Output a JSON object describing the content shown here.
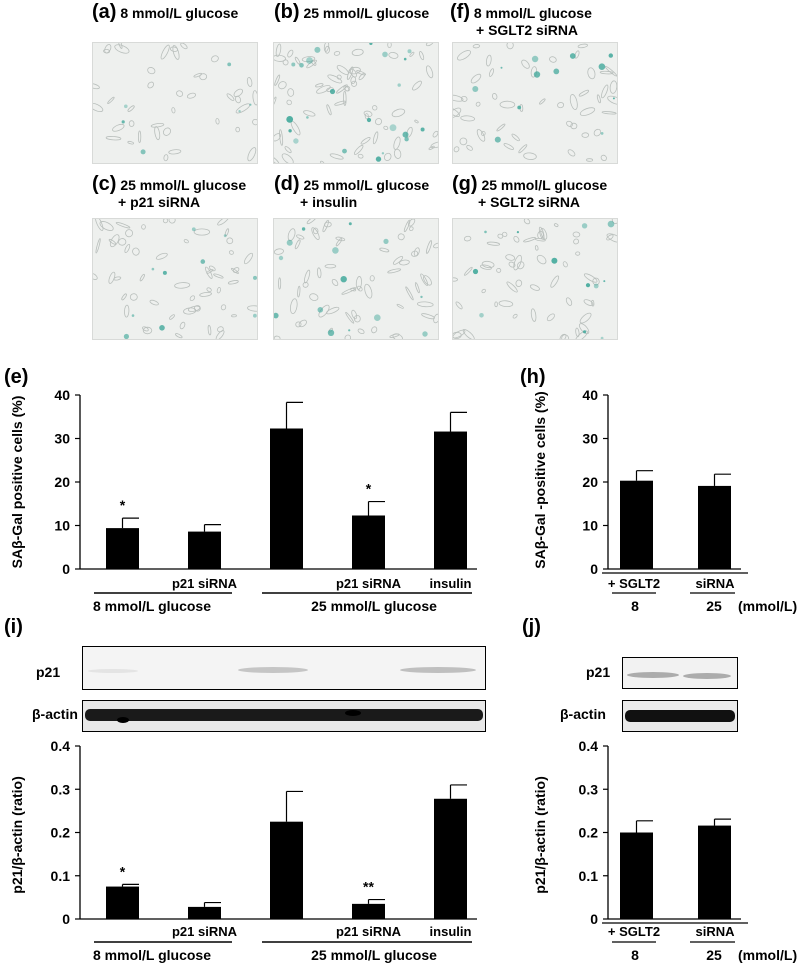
{
  "colors": {
    "bar": "#000000",
    "stain": "#3fa79a",
    "photo_bg": "#eef0ee"
  },
  "micrographs": [
    {
      "letter": "(a)",
      "line1": "8 mmol/L glucose",
      "line2": ""
    },
    {
      "letter": "(b)",
      "line1": "25 mmol/L glucose",
      "line2": ""
    },
    {
      "letter": "(f)",
      "line1": "8 mmol/L glucose",
      "line2": "+ SGLT2 siRNA"
    },
    {
      "letter": "(c)",
      "line1": "25 mmol/L glucose",
      "line2": "+ p21 siRNA"
    },
    {
      "letter": "(d)",
      "line1": "25 mmol/L glucose",
      "line2": "+ insulin"
    },
    {
      "letter": "(g)",
      "line1": "25 mmol/L glucose",
      "line2": "+ SGLT2 siRNA"
    }
  ],
  "blots": {
    "i": {
      "row1": "p21",
      "row2": "β-actin"
    },
    "j": {
      "row1": "p21",
      "row2": "β-actin"
    }
  },
  "chart_data": [
    {
      "panel": "(e)",
      "type": "bar",
      "ylabel": "SAβ-Gal positive cells (%)",
      "ylim": [
        0,
        40
      ],
      "yticks": [
        "0",
        "10",
        "20",
        "30",
        "40"
      ],
      "values": [
        9.4,
        8.6,
        32.3,
        12.3,
        31.6
      ],
      "errors": [
        2.3,
        1.6,
        6.0,
        3.2,
        4.4
      ],
      "significance": [
        "*",
        "",
        "",
        "*",
        ""
      ],
      "treatment_labels": [
        "",
        "p21  siRNA",
        "",
        "p21  siRNA",
        "insulin"
      ],
      "groups": [
        "8 mmol/L glucose",
        "25 mmol/L glucose"
      ]
    },
    {
      "panel": "(h)",
      "type": "bar",
      "ylabel": "SAβ-Gal -positive cells (%)",
      "ylim": [
        0,
        40
      ],
      "yticks": [
        "0",
        "10",
        "20",
        "30",
        "40"
      ],
      "values": [
        20.3,
        19.1
      ],
      "errors": [
        2.3,
        2.7
      ],
      "treatment_labels": [
        "+ SGLT2",
        "siRNA"
      ],
      "categories": [
        "8",
        "25"
      ],
      "unit": "(mmol/L)"
    },
    {
      "panel": "(i)",
      "type": "bar",
      "ylabel": "p21/β-actin (ratio)",
      "ylim": [
        0,
        0.4
      ],
      "yticks": [
        "0",
        "0.1",
        "0.2",
        "0.3",
        "0.4"
      ],
      "values": [
        0.075,
        0.028,
        0.225,
        0.035,
        0.278
      ],
      "errors": [
        0.005,
        0.01,
        0.07,
        0.01,
        0.032
      ],
      "significance": [
        "*",
        "",
        "",
        "**",
        ""
      ],
      "treatment_labels": [
        "",
        "p21  siRNA",
        "",
        "p21  siRNA",
        "insulin"
      ],
      "groups": [
        "8 mmol/L glucose",
        "25 mmol/L glucose"
      ]
    },
    {
      "panel": "(j)",
      "type": "bar",
      "ylabel": "p21/β-actin (ratio)",
      "ylim": [
        0,
        0.4
      ],
      "yticks": [
        "0",
        "0.1",
        "0.2",
        "0.3",
        "0.4"
      ],
      "values": [
        0.2,
        0.216
      ],
      "errors": [
        0.027,
        0.015
      ],
      "treatment_labels": [
        "+ SGLT2",
        "siRNA"
      ],
      "categories": [
        "8",
        "25"
      ],
      "unit": "(mmol/L)"
    }
  ]
}
